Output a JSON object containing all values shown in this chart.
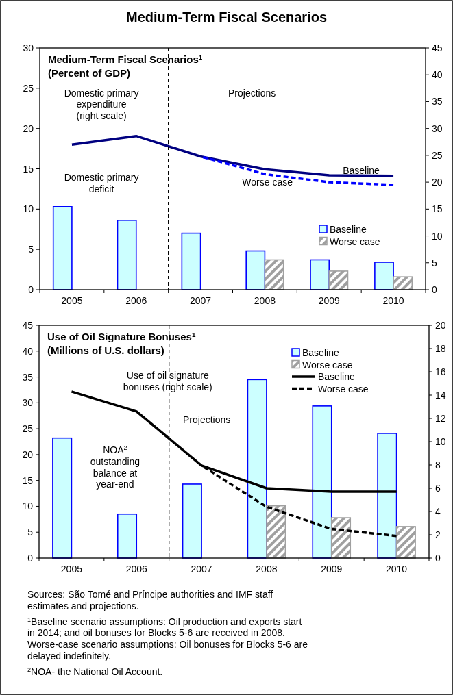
{
  "chart_data": [
    {
      "type": "bar",
      "title": "Medium-Term Fiscal Scenarios",
      "subtitle": "Medium-Term Fiscal Scenarios$^{1}$\n(Percent of GDP)",
      "x": [
        2005,
        2006,
        2007,
        2008,
        2009,
        2010
      ],
      "xlim": [
        2004.5,
        2010.5
      ],
      "xticks": [
        {
          "value": 2004.5,
          "label": null
        },
        2005,
        {
          "value": 2005.5,
          "label": null
        },
        2006,
        {
          "value": 2006.5,
          "label": null
        },
        2007,
        {
          "value": 2007.5,
          "label": null
        },
        2008,
        {
          "value": 2008.5,
          "label": null
        },
        2009,
        {
          "value": 2009.5,
          "label": null
        },
        2010,
        {
          "value": 2010.5,
          "label": null
        }
      ],
      "ylim": [
        0,
        30
      ],
      "yticks": [
        0,
        5,
        10,
        15,
        20,
        25,
        30
      ],
      "y2lim": [
        0,
        45
      ],
      "y2ticks": [
        0,
        5,
        10,
        15,
        20,
        25,
        30,
        35,
        40,
        45
      ],
      "series": [
        {
          "name": "Baseline",
          "color": "#ccffff",
          "values": [
            10.3,
            8.6,
            7.0,
            4.8,
            3.7,
            3.4
          ]
        },
        {
          "name": "Worse case",
          "color": "#a0a0a0",
          "values": [
            null,
            null,
            null,
            3.7,
            2.3,
            1.6
          ]
        },
        {
          "type": "line",
          "axis": "y2",
          "color": "#000080",
          "line_style": "solid",
          "values": [
            27,
            28.6,
            24.8,
            22.4,
            21.3,
            21.2
          ]
        },
        {
          "type": "line",
          "axis": "y2",
          "color": "#0000ff",
          "line_style": "dashed",
          "values": [
            null,
            null,
            24.8,
            21.5,
            20.0,
            19.5
          ]
        }
      ],
      "ref_lines": [
        {
          "axis": "x",
          "value": 2006.5,
          "color": "#000000",
          "line_style": "dashed"
        }
      ],
      "annotations": [
        "Domestic primary\nexpenditure\n(right scale)",
        "Projections",
        "Domestic primary\ndeficit",
        "Baseline",
        "Worse case"
      ],
      "legend": "right",
      "marker": "none"
    },
    {
      "type": "bar",
      "title": "Use of Oil Signature Bonuses$^{1}$\n(Millions of U.S. dollars)",
      "x": [
        2005,
        2006,
        2007,
        2008,
        2009,
        2010
      ],
      "xlim": [
        2004.5,
        2010.5
      ],
      "xticks": [
        {
          "value": 2004.5,
          "label": null
        },
        2005,
        {
          "value": 2005.5,
          "label": null
        },
        2006,
        {
          "value": 2006.5,
          "label": null
        },
        2007,
        {
          "value": 2007.5,
          "label": null
        },
        2008,
        {
          "value": 2008.5,
          "label": null
        },
        2009,
        {
          "value": 2009.5,
          "label": null
        },
        2010,
        {
          "value": 2010.5,
          "label": null
        }
      ],
      "ylim": [
        0,
        45
      ],
      "yticks": [
        0,
        5,
        10,
        15,
        20,
        25,
        30,
        35,
        40,
        45
      ],
      "y2lim": [
        0,
        20
      ],
      "y2ticks": [
        0,
        2,
        4,
        6,
        8,
        10,
        12,
        14,
        16,
        18,
        20
      ],
      "series": [
        {
          "name": "Baseline",
          "color": "#ccffff",
          "values": [
            23.2,
            8.5,
            14.3,
            34.5,
            29.4,
            24.1
          ]
        },
        {
          "name": "Worse case",
          "color": "#a0a0a0",
          "values": [
            null,
            null,
            null,
            10.1,
            7.8,
            6.1
          ]
        },
        {
          "name": "Baseline",
          "type": "line",
          "axis": "y2",
          "color": "#000000",
          "line_style": "solid",
          "values": [
            14.3,
            12.6,
            7.95,
            6.0,
            5.7,
            5.7
          ]
        },
        {
          "name": "Worse case",
          "type": "line",
          "axis": "y2",
          "color": "#000000",
          "line_style": "dashed",
          "values": [
            null,
            null,
            7.95,
            4.4,
            2.5,
            1.9
          ]
        }
      ],
      "ref_lines": [
        {
          "axis": "x",
          "value": 2006.5,
          "color": "#000000",
          "line_style": "dashed"
        }
      ],
      "annotations": [
        "Use of oil signature\nbonuses (right scale)",
        "Projections",
        "NOA$^{2}$\noutstanding\nbalance at\nyear-end",
        "Sources: São Tomé and Príncipe authorities and IMF staff\nestimates and projections.",
        "$^{1}$Baseline scenario assumptions: Oil production and exports start\nin 2014; and oil bonuses for Blocks 5-6 are received in 2008.\nWorse-case scenario assumptions: Oil bonuses for Blocks 5-6 are\ndelayed indefinitely.",
        "$^{2}$NOA- the National Oil Account."
      ],
      "legend": "top right",
      "marker": "none"
    }
  ]
}
